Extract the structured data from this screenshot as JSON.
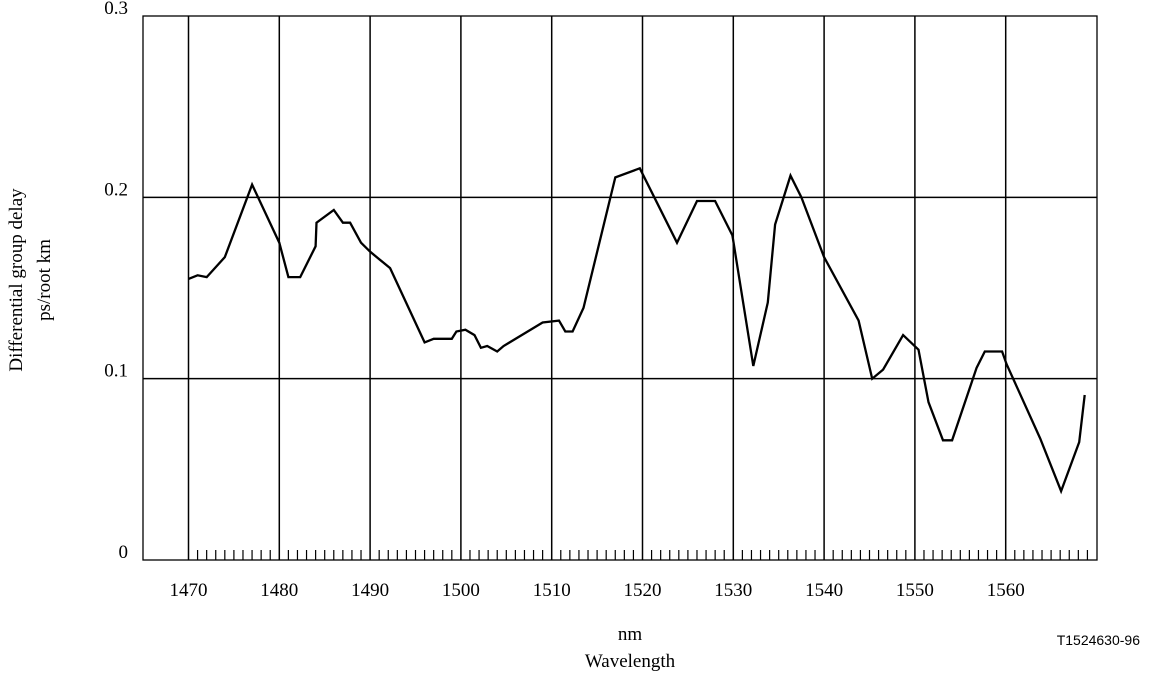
{
  "chart_data": {
    "type": "line",
    "ylabel_line1": "Differential group delay",
    "ylabel_line2": "ps/root km",
    "xlabel_line1": "nm",
    "xlabel_line2": "Wavelength",
    "figure_id": "T1524630-96",
    "xlim": [
      1470,
      1570
    ],
    "ylim": [
      0,
      0.3
    ],
    "x_ticks": [
      1470,
      1480,
      1490,
      1500,
      1510,
      1520,
      1530,
      1540,
      1550,
      1560
    ],
    "x_tick_labels": [
      "1470",
      "1480",
      "1490",
      "1500",
      "1510",
      "1520",
      "1530",
      "1540",
      "1550",
      "1560"
    ],
    "y_ticks": [
      0,
      0.1,
      0.2,
      0.3
    ],
    "y_tick_labels": [
      "0",
      "0.1",
      "0.2",
      "0.3"
    ],
    "minor_x_step": 1,
    "grid": true,
    "series": [
      {
        "x": [
          1470,
          1471,
          1472,
          1474,
          1477,
          1480,
          1481,
          1482.3,
          1484,
          1484.1,
          1486,
          1487,
          1487.8,
          1489,
          1490,
          1492.2,
          1496,
          1497,
          1499,
          1499.5,
          1500.5,
          1501.5,
          1502.2,
          1502.9,
          1504,
          1504.7,
          1509,
          1510.8,
          1511.5,
          1512.3,
          1513.5,
          1517,
          1519.7,
          1523.8,
          1526,
          1528,
          1529.9,
          1532.2,
          1533.8,
          1534.6,
          1536.3,
          1537.5,
          1540,
          1543.8,
          1545.3,
          1546.5,
          1548.7,
          1550.4,
          1551.5,
          1553.1,
          1554.1,
          1556.8,
          1557.7,
          1559.6,
          1560.1,
          1563.8,
          1566.1,
          1568.1,
          1568.7
        ],
        "y": [
          0.155,
          0.157,
          0.156,
          0.167,
          0.207,
          0.175,
          0.156,
          0.156,
          0.173,
          0.186,
          0.193,
          0.186,
          0.186,
          0.175,
          0.17,
          0.161,
          0.12,
          0.122,
          0.122,
          0.126,
          0.127,
          0.124,
          0.117,
          0.118,
          0.115,
          0.118,
          0.131,
          0.132,
          0.126,
          0.126,
          0.139,
          0.211,
          0.216,
          0.175,
          0.198,
          0.198,
          0.179,
          0.107,
          0.142,
          0.185,
          0.212,
          0.2,
          0.167,
          0.132,
          0.1,
          0.105,
          0.124,
          0.116,
          0.087,
          0.066,
          0.066,
          0.106,
          0.115,
          0.115,
          0.108,
          0.067,
          0.038,
          0.065,
          0.091
        ]
      }
    ]
  }
}
